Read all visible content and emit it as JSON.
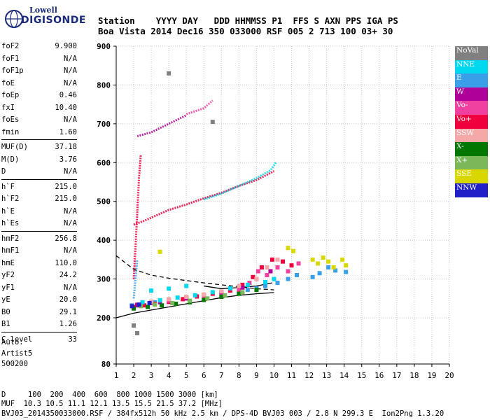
{
  "logo": {
    "line1": "Lowell",
    "line2": "DIGISONDE"
  },
  "header": {
    "row1": "Station    YYYY DAY   DDD HHMMSS P1  FFS S AXN PPS IGA PS",
    "row2": "Boa Vista 2014 Dec16 350 033000 RSF 005 2 713 100 03+ 30"
  },
  "params": [
    {
      "label": "foF2",
      "value": "9.900"
    },
    {
      "label": "foF1",
      "value": "N/A"
    },
    {
      "label": "foF1p",
      "value": "N/A"
    },
    {
      "label": "foE",
      "value": "N/A"
    },
    {
      "label": "foEp",
      "value": "0.46"
    },
    {
      "label": "fxI",
      "value": "10.40"
    },
    {
      "label": "foEs",
      "value": "N/A"
    },
    {
      "label": "fmin",
      "value": "1.60"
    },
    {
      "label": "MUF(D)",
      "value": "37.18"
    },
    {
      "label": "M(D)",
      "value": "3.76"
    },
    {
      "label": "D",
      "value": "N/A"
    },
    {
      "label": "h`F",
      "value": "215.0"
    },
    {
      "label": "h`F2",
      "value": "215.0"
    },
    {
      "label": "h`E",
      "value": "N/A"
    },
    {
      "label": "h`Es",
      "value": "N/A"
    },
    {
      "label": "hmF2",
      "value": "256.8"
    },
    {
      "label": "hmF1",
      "value": "N/A"
    },
    {
      "label": "hmE",
      "value": "110.0"
    },
    {
      "label": "yF2",
      "value": "24.2"
    },
    {
      "label": "yF1",
      "value": "N/A"
    },
    {
      "label": "yE",
      "value": "20.0"
    },
    {
      "label": "B0",
      "value": "29.1"
    },
    {
      "label": "B1",
      "value": "1.26"
    },
    {
      "label": "C-level",
      "value": "33"
    }
  ],
  "auto": {
    "line1": "Auto:",
    "line2": "Artist5",
    "line3": "500200"
  },
  "legend": [
    {
      "label": "NoVal",
      "color": "#808080"
    },
    {
      "label": "NNE",
      "color": "#00d8f0"
    },
    {
      "label": "E",
      "color": "#3a9fe8"
    },
    {
      "label": "W",
      "color": "#b0009a"
    },
    {
      "label": "Vo-",
      "color": "#f040a0"
    },
    {
      "label": "Vo+",
      "color": "#f0003c"
    },
    {
      "label": "SSW",
      "color": "#f5a8a8"
    },
    {
      "label": "X-",
      "color": "#007800"
    },
    {
      "label": "X+",
      "color": "#7ab85a"
    },
    {
      "label": "SSE",
      "color": "#d8d800"
    },
    {
      "label": "NNW",
      "color": "#2020c8"
    }
  ],
  "footer": {
    "row1": "D     100  200  400  600  800 1000 1500 3000 [km]",
    "row2": "MUF  10.3 10.5 11.1 12.1 13.5 15.5 21.5 37.2 [MHz]",
    "row3": "BVJ03_2014350033000.RSF / 384fx512h 50 kHz 2.5 km / DPS-4D BVJ03 003 / 2.8 N 299.3 E  Ion2Png 1.3.20"
  },
  "chart_data": {
    "type": "scatter",
    "xlim": [
      1,
      20
    ],
    "ylim": [
      80,
      900
    ],
    "x_ticks": [
      1,
      2,
      3,
      4,
      5,
      6,
      7,
      8,
      9,
      10,
      11,
      12,
      13,
      14,
      15,
      16,
      17,
      18,
      19,
      20
    ],
    "y_ticks": [
      80,
      200,
      300,
      400,
      500,
      600,
      700,
      800,
      900
    ],
    "grid": true,
    "legend_position": "right",
    "series": [
      {
        "name": "E",
        "color": "#3a9fe8",
        "x": [
          1.9,
          2.5,
          3.2,
          4,
          5,
          6,
          7,
          8,
          8.5,
          9,
          9.5,
          10.2,
          10.8,
          11.3,
          12.2,
          12.6,
          13.1,
          13.5,
          14.1
        ],
        "y": [
          232,
          236,
          240,
          245,
          252,
          258,
          263,
          268,
          272,
          276,
          282,
          290,
          300,
          310,
          305,
          315,
          330,
          322,
          318
        ]
      },
      {
        "name": "Vo+",
        "color": "#f0003c",
        "x": [
          2,
          2.6,
          3.2,
          4,
          4.8,
          5.6,
          6.5,
          7.5,
          8.2,
          8.8,
          9.3,
          9.9,
          10.5,
          11
        ],
        "y": [
          228,
          232,
          236,
          241,
          248,
          255,
          262,
          270,
          285,
          305,
          330,
          350,
          345,
          335
        ]
      },
      {
        "name": "Vo-",
        "color": "#f040a0",
        "x": [
          2.2,
          3,
          4,
          5,
          6,
          7,
          8,
          8.6,
          9.1,
          9.6,
          10.2,
          10.8,
          11.4
        ],
        "y": [
          234,
          238,
          244,
          250,
          257,
          264,
          272,
          290,
          320,
          310,
          330,
          320,
          340
        ]
      },
      {
        "name": "W",
        "color": "#b0009a",
        "x": [
          2.2,
          3.5,
          5,
          7,
          8.2,
          9,
          9.8
        ],
        "y": [
          232,
          240,
          250,
          266,
          278,
          300,
          320
        ]
      },
      {
        "name": "NNE",
        "color": "#00d8f0",
        "x": [
          2.5,
          3.5,
          4.5,
          5.5,
          6.5,
          7.5,
          8.5,
          9.5,
          10,
          3,
          4,
          5
        ],
        "y": [
          240,
          245,
          252,
          258,
          266,
          276,
          285,
          292,
          300,
          270,
          275,
          282
        ]
      },
      {
        "name": "SSW",
        "color": "#f5a8a8",
        "x": [
          3,
          4,
          5,
          6,
          7,
          8,
          9,
          9.6,
          10.2
        ],
        "y": [
          242,
          248,
          254,
          260,
          268,
          282,
          300,
          330,
          350
        ]
      },
      {
        "name": "X-",
        "color": "#007800",
        "x": [
          2,
          2.8,
          3.6,
          4.4,
          5.2,
          6,
          7,
          8,
          9
        ],
        "y": [
          224,
          228,
          232,
          236,
          240,
          246,
          254,
          262,
          272
        ]
      },
      {
        "name": "X+",
        "color": "#7ab85a",
        "x": [
          2.4,
          3.2,
          4.2,
          5.2,
          6.2,
          7.2,
          8.2
        ],
        "y": [
          230,
          234,
          238,
          244,
          250,
          258,
          266
        ]
      },
      {
        "name": "SSE",
        "color": "#d8d800",
        "x": [
          12.2,
          12.5,
          12.8,
          13.1,
          13.4,
          13.9,
          14.1,
          3.5,
          10.8,
          11.1
        ],
        "y": [
          350,
          340,
          355,
          345,
          330,
          350,
          335,
          370,
          380,
          372
        ]
      },
      {
        "name": "NNW",
        "color": "#2020c8",
        "x": [
          1.9,
          2.3,
          2.9
        ],
        "y": [
          230,
          234,
          238
        ]
      },
      {
        "name": "NoVal",
        "color": "#808080",
        "x": [
          2,
          4,
          6.5,
          2.2
        ],
        "y": [
          180,
          830,
          705,
          160
        ]
      }
    ],
    "traces": [
      {
        "color": "#f0003c",
        "x": [
          2,
          2.6,
          3.2,
          4,
          5,
          6,
          7,
          8,
          9,
          10
        ],
        "y": [
          440,
          450,
          462,
          478,
          492,
          508,
          522,
          540,
          555,
          578
        ]
      },
      {
        "color": "#00d8f0",
        "x": [
          6,
          7,
          8,
          9,
          9.8,
          10.1
        ],
        "y": [
          505,
          520,
          540,
          560,
          580,
          600
        ]
      },
      {
        "color": "#b0009a",
        "x": [
          2.2,
          3,
          4,
          5
        ],
        "y": [
          668,
          678,
          700,
          722
        ]
      },
      {
        "color": "#f040a0",
        "x": [
          5,
          6,
          6.5
        ],
        "y": [
          725,
          740,
          760
        ]
      },
      {
        "color": "#f0003c",
        "x": [
          2,
          2.1,
          2.2,
          2.3,
          2.4
        ],
        "y": [
          300,
          380,
          470,
          560,
          620
        ]
      },
      {
        "color": "#3a9fe8",
        "x": [
          2,
          2.1,
          2.2
        ],
        "y": [
          250,
          300,
          350
        ]
      }
    ],
    "profile_curves": [
      {
        "style": "dashed",
        "x": [
          1,
          2,
          3,
          4,
          5,
          6,
          7,
          8,
          9,
          10
        ],
        "y": [
          360,
          325,
          310,
          302,
          296,
          290,
          285,
          280,
          275,
          272
        ]
      },
      {
        "style": "solid",
        "x": [
          1,
          2,
          3,
          4,
          5,
          6,
          7,
          8,
          9,
          10
        ],
        "y": [
          200,
          212,
          220,
          228,
          236,
          244,
          252,
          258,
          262,
          265
        ]
      },
      {
        "style": "solid",
        "x": [
          6,
          7,
          8,
          9,
          9.9
        ],
        "y": [
          282,
          275,
          278,
          282,
          290
        ]
      }
    ]
  }
}
